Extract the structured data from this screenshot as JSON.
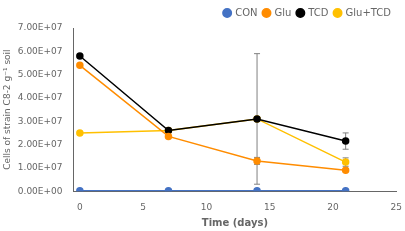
{
  "chart_data": {
    "type": "line",
    "x": [
      0,
      7,
      14,
      21
    ],
    "series": [
      {
        "name": "CON",
        "color": "#4472C4",
        "marker": "circle",
        "values": [
          200000,
          200000,
          200000,
          200000
        ],
        "errors": [
          0,
          0,
          0,
          0
        ]
      },
      {
        "name": "Glu",
        "color": "#FF8C00",
        "marker": "circle",
        "values": [
          54000000,
          23500000,
          13000000,
          9000000
        ],
        "errors": [
          0,
          0,
          1500000,
          0
        ]
      },
      {
        "name": "TCD",
        "color": "#000000",
        "marker": "circle",
        "values": [
          58000000,
          26000000,
          31000000,
          21500000
        ],
        "errors": [
          0,
          0,
          28000000,
          3500000
        ]
      },
      {
        "name": "Glu+TCD",
        "color": "#FFC000",
        "marker": "circle",
        "values": [
          25000000,
          26000000,
          31000000,
          12500000
        ],
        "errors": [
          0,
          0,
          0,
          1800000
        ]
      }
    ],
    "xlabel": "Time (days)",
    "ylabel": "Cells of strain C8-2 g⁻¹ soil",
    "xlim": [
      -0.5,
      25
    ],
    "xticks": [
      0,
      5,
      10,
      15,
      20,
      25
    ],
    "ylim": [
      0,
      70000000
    ],
    "yticks": [
      {
        "value": 0,
        "label": "0.00E+00"
      },
      {
        "value": 10000000,
        "label": "1.00E+07"
      },
      {
        "value": 20000000,
        "label": "2.00E+07"
      },
      {
        "value": 30000000,
        "label": "3.00E+07"
      },
      {
        "value": 40000000,
        "label": "4.00E+07"
      },
      {
        "value": 50000000,
        "label": "5.00E+07"
      },
      {
        "value": 60000000,
        "label": "6.00E+07"
      },
      {
        "value": 70000000,
        "label": "7.00E+07"
      }
    ],
    "grid": false,
    "legend": "upper right"
  }
}
